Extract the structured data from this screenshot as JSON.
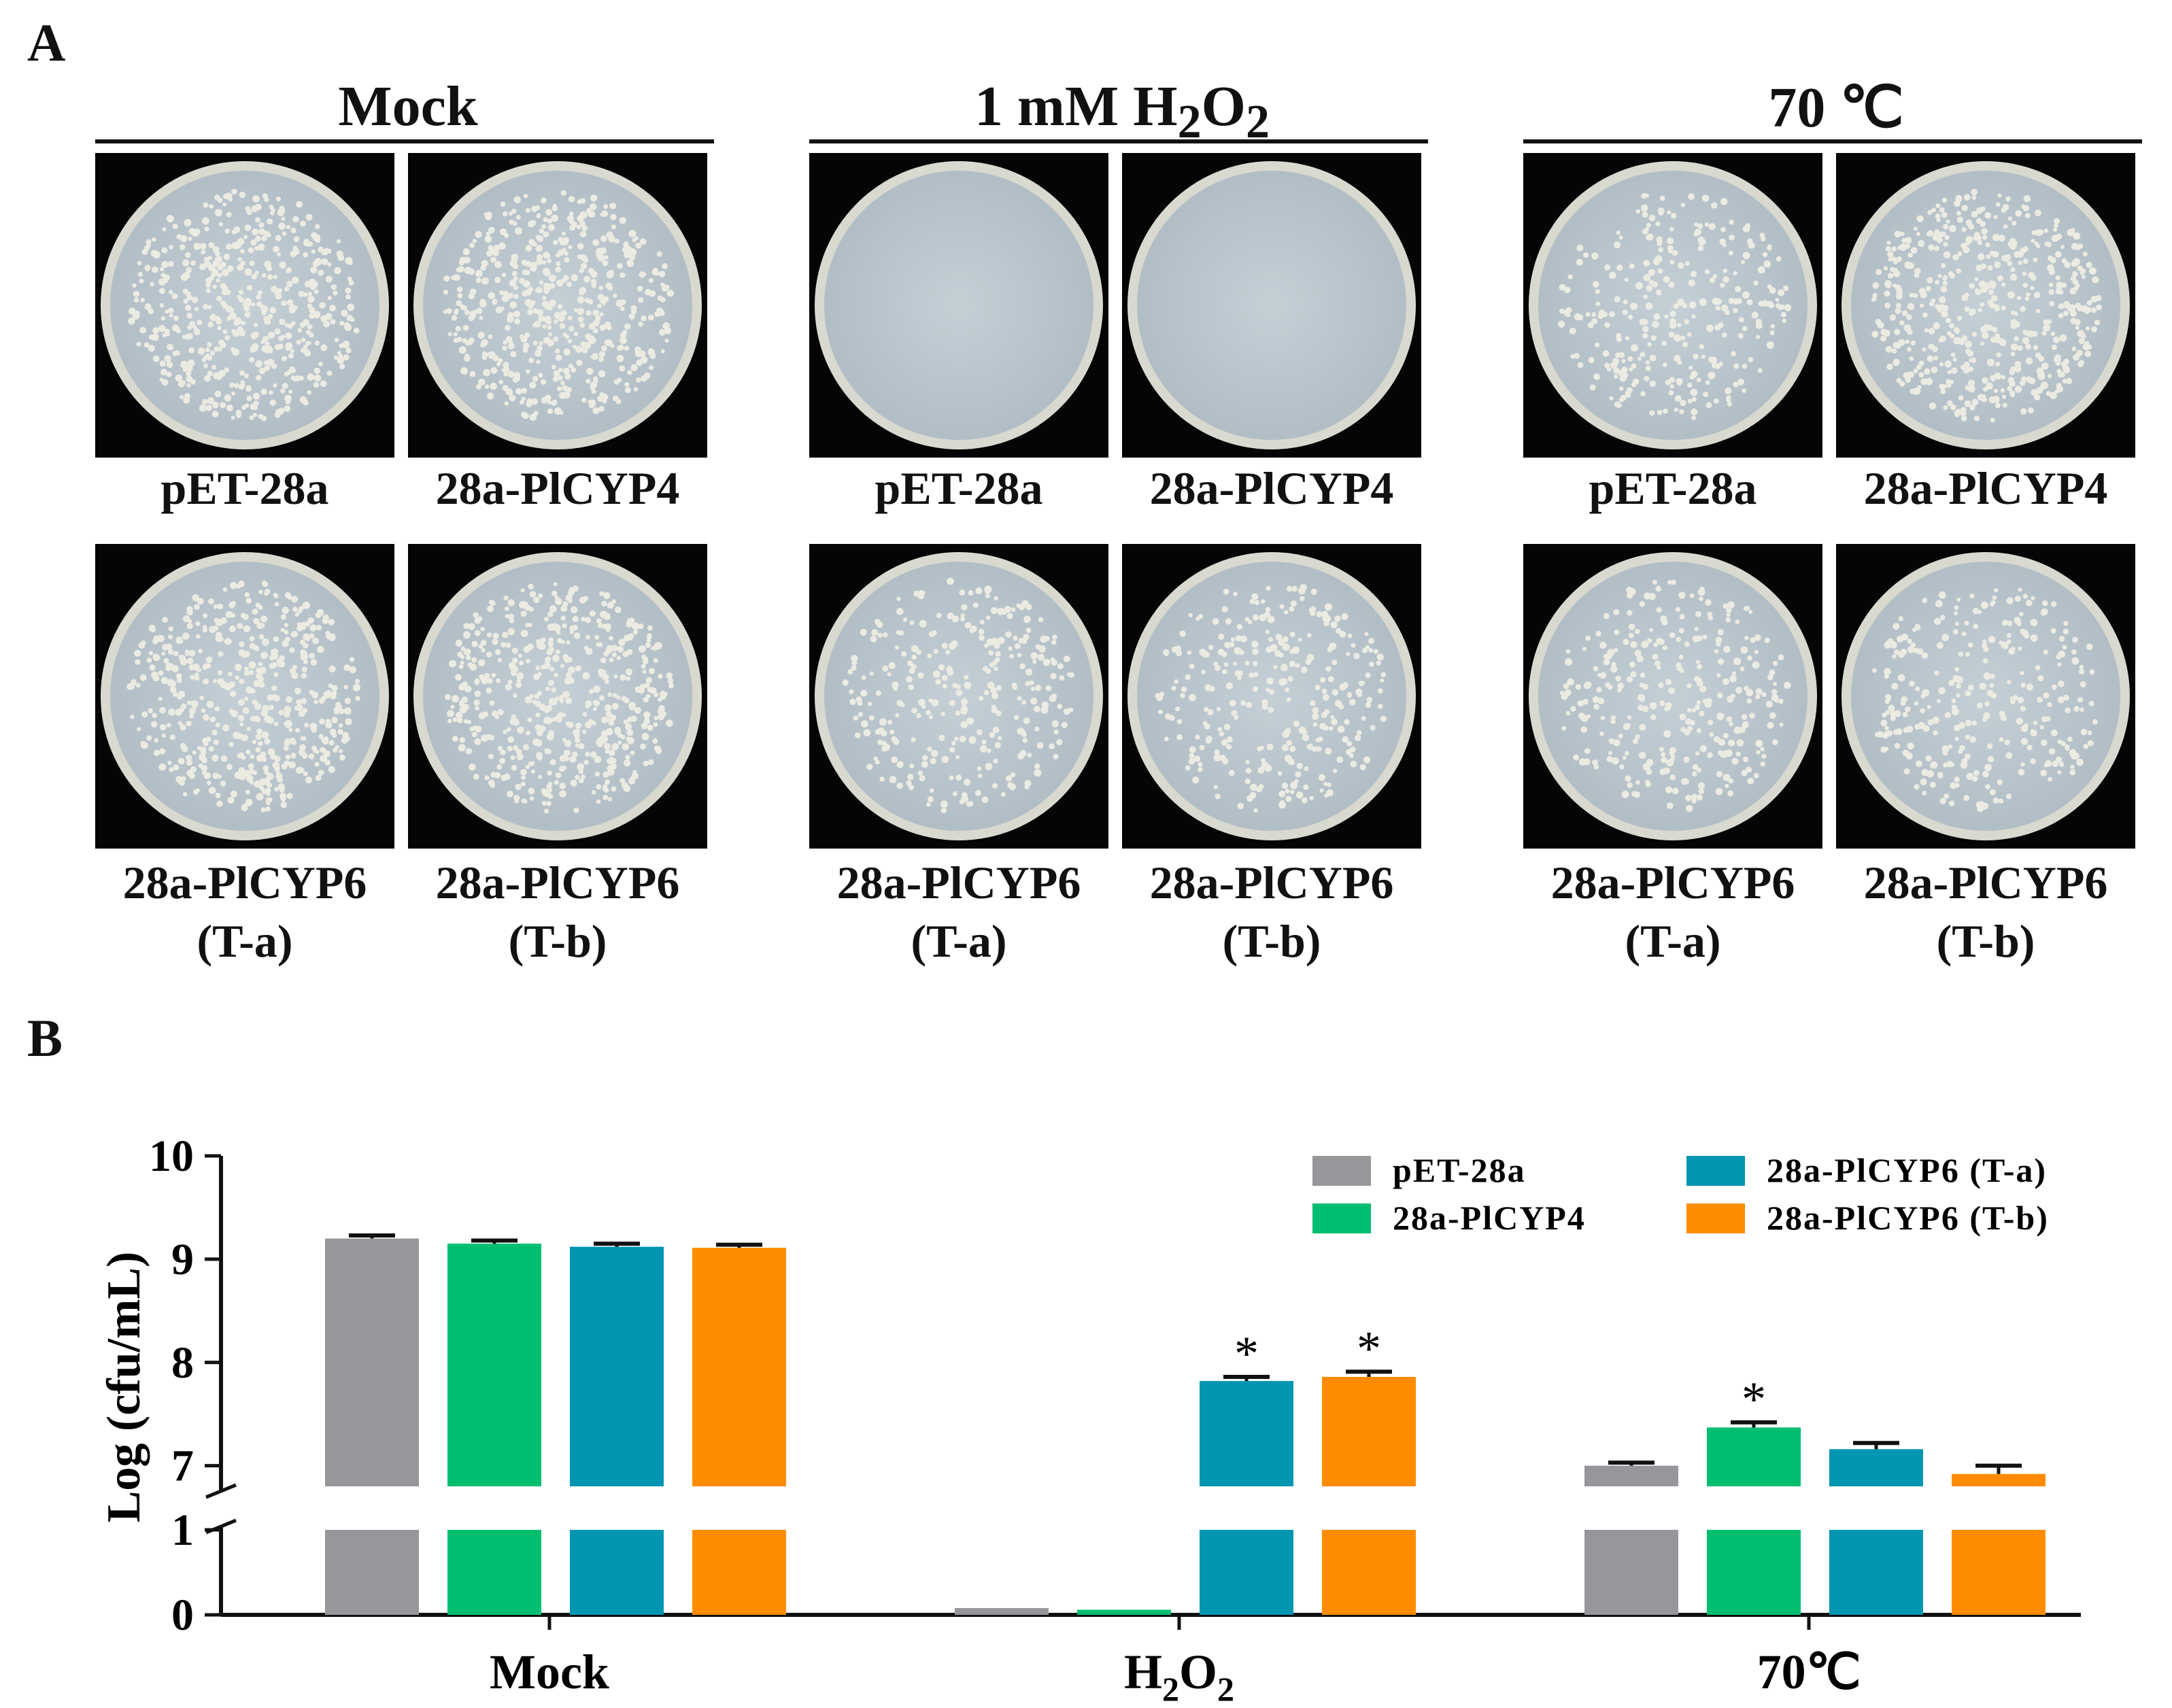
{
  "panel_a": {
    "letter": "A",
    "groups": [
      {
        "title_main": "Mock",
        "title_sub1": "",
        "title_mid": "",
        "title_sub2": "",
        "plates": [
          {
            "label1": "pET-28a",
            "label2": "",
            "growth": "dense"
          },
          {
            "label1": "28a-PlCYP4",
            "label2": "",
            "growth": "dense"
          },
          {
            "label1": "28a-PlCYP6",
            "label2": "(T-a)",
            "growth": "dense"
          },
          {
            "label1": "28a-PlCYP6",
            "label2": "(T-b)",
            "growth": "dense"
          }
        ]
      },
      {
        "title_main": "1 mM H",
        "title_sub1": "2",
        "title_mid": "O",
        "title_sub2": "2",
        "plates": [
          {
            "label1": "pET-28a",
            "label2": "",
            "growth": "none"
          },
          {
            "label1": "28a-PlCYP4",
            "label2": "",
            "growth": "none"
          },
          {
            "label1": "28a-PlCYP6",
            "label2": "(T-a)",
            "growth": "medium"
          },
          {
            "label1": "28a-PlCYP6",
            "label2": "(T-b)",
            "growth": "medium"
          }
        ]
      },
      {
        "title_main": "70 ℃",
        "title_sub1": "",
        "title_mid": "",
        "title_sub2": "",
        "plates": [
          {
            "label1": "pET-28a",
            "label2": "",
            "growth": "medium"
          },
          {
            "label1": "28a-PlCYP4",
            "label2": "",
            "growth": "dense"
          },
          {
            "label1": "28a-PlCYP6",
            "label2": "(T-a)",
            "growth": "medium"
          },
          {
            "label1": "28a-PlCYP6",
            "label2": "(T-b)",
            "growth": "medium"
          }
        ]
      }
    ]
  },
  "panel_b": {
    "letter": "B"
  },
  "chart_data": {
    "type": "bar",
    "categories": [
      "Mock",
      "H2O2",
      "70℃"
    ],
    "category_labels": [
      {
        "main": "Mock",
        "sub1": "",
        "mid": "",
        "sub2": ""
      },
      {
        "main": "H",
        "sub1": "2",
        "mid": "O",
        "sub2": "2"
      },
      {
        "main": "70℃",
        "sub1": "",
        "mid": "",
        "sub2": ""
      }
    ],
    "ylabel": "Log (cfu/mL)",
    "y_axis": {
      "broken": true,
      "lower_range": [
        0,
        1
      ],
      "upper_range": [
        6.8,
        10
      ],
      "lower_ticks": [
        "0",
        "1"
      ],
      "upper_ticks": [
        "7",
        "8",
        "9",
        "10"
      ]
    },
    "series": [
      {
        "name": "pET-28a",
        "color": "#97969a",
        "values": [
          9.2,
          0.08,
          7.0
        ],
        "errors": [
          0.03,
          0,
          0.03
        ],
        "significant": [
          false,
          false,
          false
        ]
      },
      {
        "name": "28a-PlCYP4",
        "color": "#00be6f",
        "values": [
          9.15,
          0.06,
          7.37
        ],
        "errors": [
          0.03,
          0,
          0.05
        ],
        "significant": [
          false,
          false,
          true
        ]
      },
      {
        "name": "28a-PlCYP6 (T-a)",
        "color": "#0095b0",
        "values": [
          9.12,
          7.82,
          7.16
        ],
        "errors": [
          0.03,
          0.04,
          0.06
        ],
        "significant": [
          false,
          true,
          false
        ]
      },
      {
        "name": "28a-PlCYP6 (T-b)",
        "color": "#ff8c00",
        "values": [
          9.11,
          7.86,
          6.92
        ],
        "errors": [
          0.03,
          0.05,
          0.08
        ],
        "significant": [
          false,
          true,
          false
        ]
      }
    ],
    "significance_marker": "*",
    "legend_position": "top-right",
    "grid": false
  }
}
